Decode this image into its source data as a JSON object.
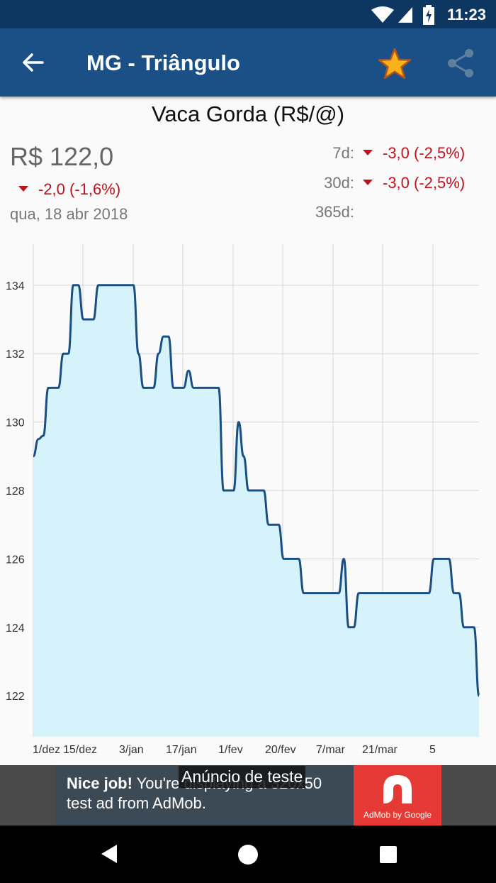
{
  "status_bar": {
    "time": "11:23"
  },
  "app_bar": {
    "title": "MG - Triângulo"
  },
  "quote": {
    "title": "Vaca Gorda (R$/@)",
    "price": "R$ 122,0",
    "change": "-2,0 (-1,6%)",
    "date": "qua, 18 abr 2018",
    "periods": [
      {
        "label": "7d:",
        "value": "-3,0 (-2,5%)"
      },
      {
        "label": "30d:",
        "value": "-3,0 (-2,5%)"
      },
      {
        "label": "365d:",
        "value": ""
      }
    ]
  },
  "chart_data": {
    "type": "line",
    "x_tick_labels": [
      "1/dez",
      "15/dez",
      "3/jan",
      "17/jan",
      "1/fev",
      "20/fev",
      "7/mar",
      "21/mar",
      "5"
    ],
    "y_ticks": [
      122,
      124,
      126,
      128,
      130,
      132,
      134
    ],
    "ylim": [
      120.8,
      135.2
    ],
    "series": [
      {
        "values": [
          [
            0,
            129
          ],
          [
            1,
            129.5
          ],
          [
            2,
            129.6
          ],
          [
            3,
            131
          ],
          [
            4,
            131
          ],
          [
            5,
            131
          ],
          [
            6,
            132
          ],
          [
            7,
            132
          ],
          [
            8,
            134
          ],
          [
            9,
            134
          ],
          [
            10,
            133
          ],
          [
            11,
            133
          ],
          [
            12,
            133
          ],
          [
            13,
            134
          ],
          [
            14,
            134
          ],
          [
            15,
            134
          ],
          [
            16,
            134
          ],
          [
            17,
            134
          ],
          [
            18,
            134
          ],
          [
            19,
            134
          ],
          [
            20,
            134
          ],
          [
            21,
            132
          ],
          [
            22,
            131
          ],
          [
            23,
            131
          ],
          [
            24,
            131
          ],
          [
            25,
            132
          ],
          [
            26,
            132.5
          ],
          [
            27,
            132.5
          ],
          [
            28,
            131
          ],
          [
            29,
            131
          ],
          [
            30,
            131
          ],
          [
            31,
            131.5
          ],
          [
            32,
            131
          ],
          [
            33,
            131
          ],
          [
            34,
            131
          ],
          [
            35,
            131
          ],
          [
            36,
            131
          ],
          [
            37,
            131
          ],
          [
            38,
            128
          ],
          [
            39,
            128
          ],
          [
            40,
            128
          ],
          [
            41,
            130
          ],
          [
            42,
            129
          ],
          [
            43,
            128
          ],
          [
            44,
            128
          ],
          [
            45,
            128
          ],
          [
            46,
            128
          ],
          [
            47,
            127
          ],
          [
            48,
            127
          ],
          [
            49,
            127
          ],
          [
            50,
            126
          ],
          [
            51,
            126
          ],
          [
            52,
            126
          ],
          [
            53,
            126
          ],
          [
            54,
            125
          ],
          [
            55,
            125
          ],
          [
            56,
            125
          ],
          [
            57,
            125
          ],
          [
            58,
            125
          ],
          [
            59,
            125
          ],
          [
            60,
            125
          ],
          [
            61,
            125
          ],
          [
            62,
            126
          ],
          [
            63,
            124
          ],
          [
            64,
            124
          ],
          [
            65,
            125
          ],
          [
            66,
            125
          ],
          [
            67,
            125
          ],
          [
            68,
            125
          ],
          [
            69,
            125
          ],
          [
            70,
            125
          ],
          [
            71,
            125
          ],
          [
            72,
            125
          ],
          [
            73,
            125
          ],
          [
            74,
            125
          ],
          [
            75,
            125
          ],
          [
            76,
            125
          ],
          [
            77,
            125
          ],
          [
            78,
            125
          ],
          [
            79,
            125
          ],
          [
            80,
            126
          ],
          [
            81,
            126
          ],
          [
            82,
            126
          ],
          [
            83,
            126
          ],
          [
            84,
            125
          ],
          [
            85,
            125
          ],
          [
            86,
            124
          ],
          [
            87,
            124
          ],
          [
            88,
            124
          ],
          [
            89,
            122
          ]
        ]
      }
    ],
    "grid": true,
    "line_color": "#1a4f82",
    "fill_color": "#d6f3fb"
  },
  "ad": {
    "line1_bold": "Nice job!",
    "line1_rest": " You're displaying a 320x50",
    "line2": "test ad from AdMob.",
    "logo_text": "AdMob by Google",
    "test_label": "Anúncio de teste"
  },
  "colors": {
    "app_bar": "#1b5086",
    "status_bar": "#0d3760",
    "down": "#c0121d",
    "star": "#f9b21a"
  },
  "icons": {
    "back": "arrow-left-icon",
    "favorite": "star-icon",
    "share": "share-icon",
    "nav_back": "triangle-back-icon",
    "nav_home": "circle-home-icon",
    "nav_recents": "square-recents-icon"
  }
}
